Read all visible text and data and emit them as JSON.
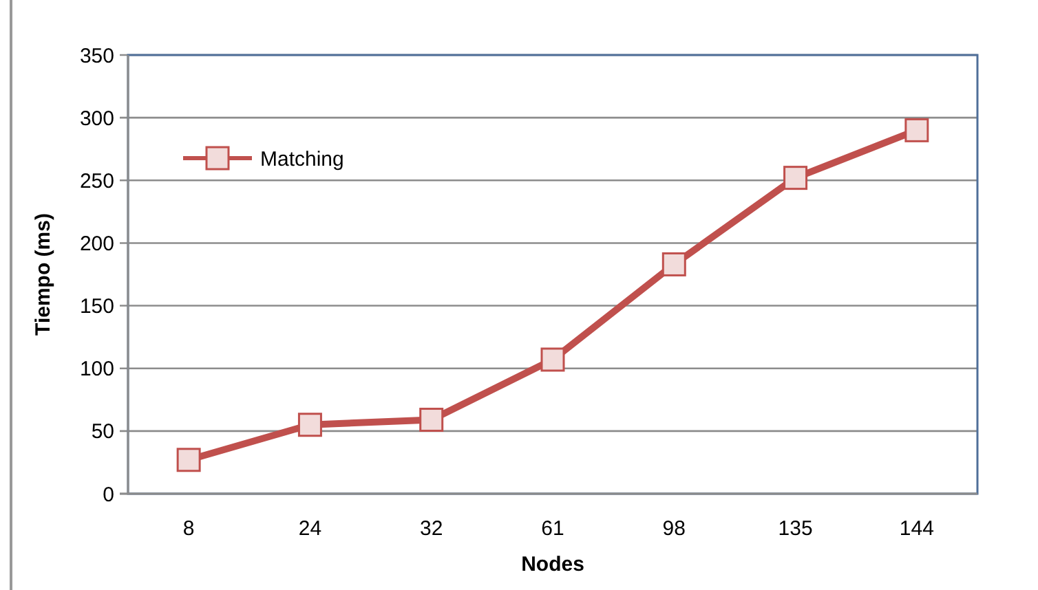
{
  "chart_data": {
    "type": "line",
    "xlabel": "Nodes",
    "ylabel": "Tiempo (ms)",
    "categories": [
      "8",
      "24",
      "32",
      "61",
      "98",
      "135",
      "144"
    ],
    "series": [
      {
        "name": "Matching",
        "color": "#c0504d",
        "values": [
          27,
          55,
          59,
          107,
          183,
          252,
          290
        ]
      }
    ],
    "ylim": [
      0,
      350
    ],
    "yticks": [
      0,
      50,
      100,
      150,
      200,
      250,
      300,
      350
    ],
    "grid": "y",
    "legend": "top left",
    "marker": "square",
    "line_style": "solid"
  }
}
